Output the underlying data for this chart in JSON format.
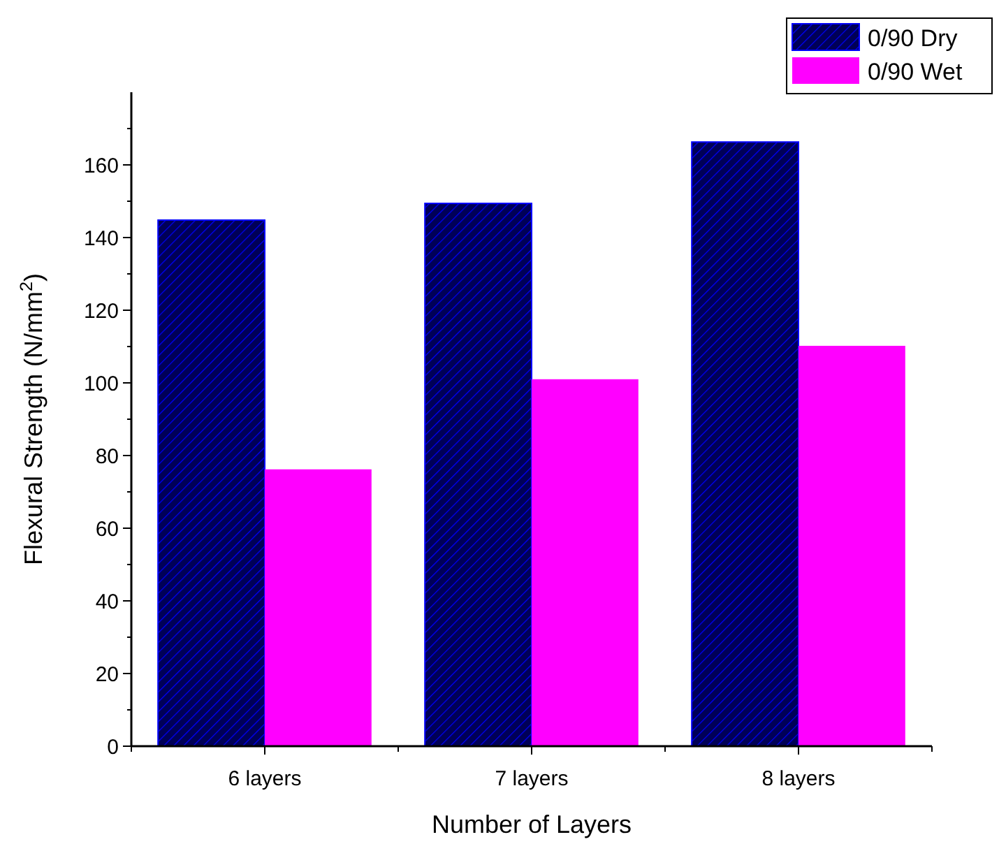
{
  "chart_data": {
    "type": "bar",
    "xlabel": "Number of Layers",
    "ylabel": "Flexural Strength (N/mm$^{2}$)",
    "categories": [
      "6 layers",
      "7 layers",
      "8 layers"
    ],
    "series": [
      {
        "name": "0/90 Dry",
        "color": "#0000ff",
        "values": [
          144.8,
          149.4,
          166.3
        ]
      },
      {
        "name": "0/90 Wet",
        "color": "#ff00ff",
        "values": [
          76.2,
          101,
          110.2
        ]
      }
    ],
    "ylim": [
      0,
      180
    ],
    "yticks": [
      0,
      {
        "value": 10,
        "label": null
      },
      20,
      {
        "value": 30,
        "label": null
      },
      40,
      {
        "value": 50,
        "label": null
      },
      60,
      {
        "value": 70,
        "label": null
      },
      80,
      {
        "value": 90,
        "label": null
      },
      100,
      {
        "value": 110,
        "label": null
      },
      120,
      {
        "value": 130,
        "label": null
      },
      140,
      {
        "value": 150,
        "label": null
      },
      160,
      {
        "value": 170,
        "label": null
      }
    ],
    "grid": false,
    "legend": "top right"
  }
}
